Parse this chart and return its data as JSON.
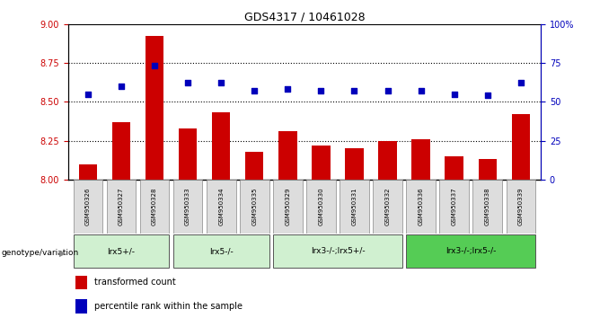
{
  "title": "GDS4317 / 10461028",
  "samples": [
    "GSM950326",
    "GSM950327",
    "GSM950328",
    "GSM950333",
    "GSM950334",
    "GSM950335",
    "GSM950329",
    "GSM950330",
    "GSM950331",
    "GSM950332",
    "GSM950336",
    "GSM950337",
    "GSM950338",
    "GSM950339"
  ],
  "transformed_count": [
    8.1,
    8.37,
    8.92,
    8.33,
    8.43,
    8.18,
    8.31,
    8.22,
    8.2,
    8.25,
    8.26,
    8.15,
    8.13,
    8.42
  ],
  "percentile_rank": [
    55,
    60,
    73,
    62,
    62,
    57,
    58,
    57,
    57,
    57,
    57,
    55,
    54,
    62
  ],
  "group_boundaries": [
    0,
    3,
    6,
    10,
    14
  ],
  "group_labels": [
    "lrx5+/-",
    "lrx5-/-",
    "lrx3-/-;lrx5+/-",
    "lrx3-/-;lrx5-/-"
  ],
  "group_colors": [
    "#c8f0c8",
    "#c8f0c8",
    "#c8f0c8",
    "#5ccc5c"
  ],
  "ylim_left": [
    8.0,
    9.0
  ],
  "ylim_right": [
    0,
    100
  ],
  "yticks_left": [
    8.0,
    8.25,
    8.5,
    8.75,
    9.0
  ],
  "yticks_right": [
    0,
    25,
    50,
    75,
    100
  ],
  "bar_color": "#CC0000",
  "dot_color": "#0000BB",
  "left_axis_color": "#CC0000",
  "right_axis_color": "#0000BB"
}
